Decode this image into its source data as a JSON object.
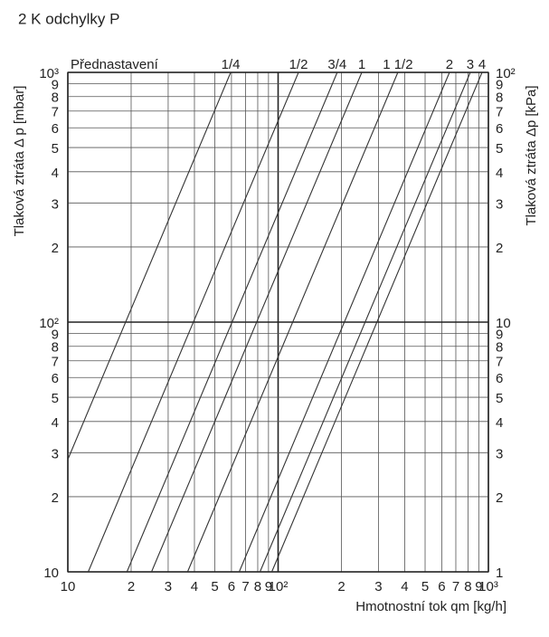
{
  "chart_data": {
    "type": "line",
    "title": "2 K odchylky P",
    "legend_title": "Přednastavení",
    "x_label": "Hmotnostní tok qm [kg/h]",
    "y_label": "Tlaková ztráta Δ p [mbar]",
    "y2_label": "Tlaková ztráta Δp [kPa]",
    "log_x": true,
    "log_y": true,
    "grid": true,
    "xlim": [
      10,
      1000
    ],
    "ylim": [
      10,
      1000
    ],
    "y2lim": [
      1,
      100
    ],
    "xticks": [
      10,
      {
        "value": 20,
        "label": "2"
      },
      {
        "value": 30,
        "label": "3"
      },
      {
        "value": 40,
        "label": "4"
      },
      {
        "value": 50,
        "label": "5"
      },
      {
        "value": 60,
        "label": "6"
      },
      {
        "value": 70,
        "label": "7"
      },
      {
        "value": 80,
        "label": "8"
      },
      {
        "value": 90,
        "label": "9"
      },
      {
        "value": 100,
        "label": "10²"
      },
      {
        "value": 200,
        "label": "2"
      },
      {
        "value": 300,
        "label": "3"
      },
      {
        "value": 400,
        "label": "4"
      },
      {
        "value": 500,
        "label": "5"
      },
      {
        "value": 600,
        "label": "6"
      },
      {
        "value": 700,
        "label": "7"
      },
      {
        "value": 800,
        "label": "8"
      },
      {
        "value": 900,
        "label": "9"
      },
      {
        "value": 1000,
        "label": "10³"
      }
    ],
    "yticks": [
      10,
      {
        "value": 20,
        "label": "2"
      },
      {
        "value": 30,
        "label": "3"
      },
      {
        "value": 40,
        "label": "4"
      },
      {
        "value": 50,
        "label": "5"
      },
      {
        "value": 60,
        "label": "6"
      },
      {
        "value": 70,
        "label": "7"
      },
      {
        "value": 80,
        "label": "8"
      },
      {
        "value": 90,
        "label": "9"
      },
      {
        "value": 100,
        "label": "10²"
      },
      {
        "value": 200,
        "label": "2"
      },
      {
        "value": 300,
        "label": "3"
      },
      {
        "value": 400,
        "label": "4"
      },
      {
        "value": 500,
        "label": "5"
      },
      {
        "value": 600,
        "label": "6"
      },
      {
        "value": 700,
        "label": "7"
      },
      {
        "value": 800,
        "label": "8"
      },
      {
        "value": 900,
        "label": "9"
      },
      {
        "value": 1000,
        "label": "10³"
      }
    ],
    "y2ticks": [
      1,
      2,
      3,
      4,
      5,
      6,
      7,
      8,
      9,
      10,
      {
        "value": 20,
        "label": "2"
      },
      {
        "value": 30,
        "label": "3"
      },
      {
        "value": 40,
        "label": "4"
      },
      {
        "value": 50,
        "label": "5"
      },
      {
        "value": 60,
        "label": "6"
      },
      {
        "value": 70,
        "label": "7"
      },
      {
        "value": 80,
        "label": "8"
      },
      {
        "value": 90,
        "label": "9"
      },
      {
        "value": 100,
        "label": "10²"
      }
    ],
    "series": [
      {
        "name": "1/4",
        "color": "#333333",
        "x": [
          10,
          59.5
        ],
        "values": [
          28.2,
          1000
        ]
      },
      {
        "name": "1/2",
        "color": "#333333",
        "x": [
          12.5,
          125
        ],
        "values": [
          10,
          1000
        ]
      },
      {
        "name": "3/4",
        "color": "#333333",
        "x": [
          19.1,
          191
        ],
        "values": [
          10,
          1000
        ]
      },
      {
        "name": "1",
        "color": "#333333",
        "x": [
          25,
          250
        ],
        "values": [
          10,
          1000
        ]
      },
      {
        "name": "1 1/2",
        "color": "#333333",
        "x": [
          37.1,
          371
        ],
        "values": [
          10,
          1000
        ]
      },
      {
        "name": "2",
        "color": "#333333",
        "x": [
          65.3,
          653
        ],
        "values": [
          10,
          1000
        ]
      },
      {
        "name": "3",
        "color": "#333333",
        "x": [
          82,
          820
        ],
        "values": [
          10,
          1000
        ]
      },
      {
        "name": "4",
        "color": "#333333",
        "x": [
          93.3,
          933
        ],
        "values": [
          10,
          1000
        ]
      }
    ]
  }
}
